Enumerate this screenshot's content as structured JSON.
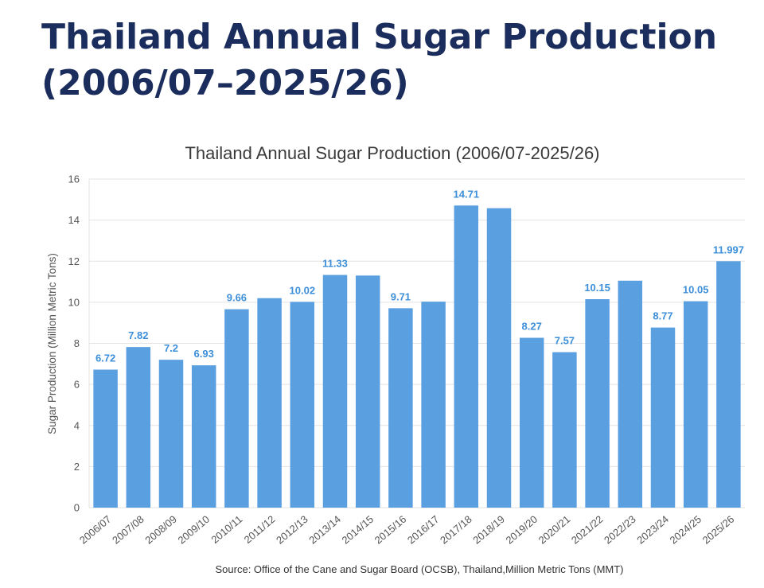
{
  "page": {
    "title_line1": "Thailand Annual Sugar Production",
    "title_line2": "(2006/07–2025/26)"
  },
  "chart_data": {
    "type": "bar",
    "title": "Thailand Annual Sugar Production (2006/07-2025/26)",
    "xlabel": "",
    "ylabel": "Sugar Production (Million Metric Tons)",
    "ylim": [
      0,
      16
    ],
    "yticks": [
      0,
      2,
      4,
      6,
      8,
      10,
      12,
      14,
      16
    ],
    "grid": true,
    "legend": "none",
    "bar_color": "#5aa0e0",
    "label_color": "#3d8fd9",
    "categories": [
      "2006/07",
      "2007/08",
      "2008/09",
      "2009/10",
      "2010/11",
      "2011/12",
      "2012/13",
      "2013/14",
      "2014/15",
      "2015/16",
      "2016/17",
      "2017/18",
      "2018/19",
      "2019/20",
      "2020/21",
      "2021/22",
      "2022/23",
      "2023/24",
      "2024/25",
      "2025/26"
    ],
    "values": [
      6.72,
      7.82,
      7.2,
      6.93,
      9.66,
      10.2,
      10.02,
      11.33,
      11.3,
      9.71,
      10.03,
      14.71,
      14.58,
      8.27,
      7.57,
      10.15,
      11.05,
      8.77,
      10.05,
      11.997
    ],
    "data_labels": [
      "6.72",
      "7.82",
      "7.2",
      "6.93",
      "9.66",
      null,
      "10.02",
      "11.33",
      null,
      "9.71",
      null,
      "14.71",
      null,
      "8.27",
      "7.57",
      "10.15",
      null,
      "8.77",
      "10.05",
      "11.997"
    ],
    "source": "Source: Office of the Cane and Sugar Board (OCSB), Thailand,Million Metric Tons (MMT)"
  }
}
